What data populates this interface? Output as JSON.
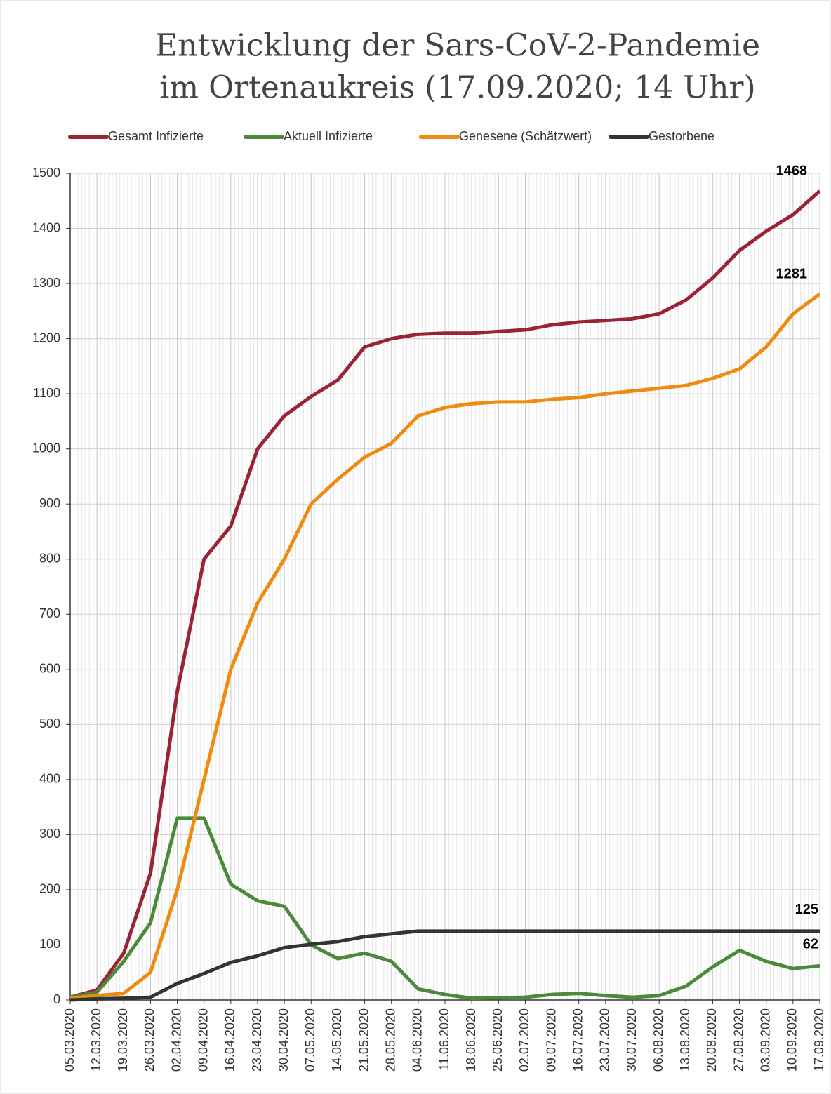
{
  "chart_data": {
    "type": "line",
    "title": [
      "Entwicklung der Sars-CoV-2-Pandemie",
      "im Ortenaukreis (17.09.2020; 14 Uhr)"
    ],
    "x": [
      "05.03.2020",
      "12.03.2020",
      "19.03.2020",
      "26.03.2020",
      "02.04.2020",
      "09.04.2020",
      "16.04.2020",
      "23.04.2020",
      "30.04.2020",
      "07.05.2020",
      "14.05.2020",
      "21.05.2020",
      "28.05.2020",
      "04.06.2020",
      "11.06.2020",
      "18.06.2020",
      "25.06.2020",
      "02.07.2020",
      "09.07.2020",
      "16.07.2020",
      "23.07.2020",
      "30.07.2020",
      "06.08.2020",
      "13.08.2020",
      "20.08.2020",
      "27.08.2020",
      "03.09.2020",
      "10.09.2020",
      "17.09.2020"
    ],
    "series": [
      {
        "name": "Gesamt Infizierte",
        "color": "#9b2335",
        "values": [
          5,
          18,
          85,
          230,
          560,
          800,
          860,
          1000,
          1060,
          1095,
          1125,
          1185,
          1200,
          1208,
          1210,
          1210,
          1213,
          1216,
          1225,
          1230,
          1233,
          1236,
          1245,
          1270,
          1310,
          1360,
          1395,
          1425,
          1468
        ]
      },
      {
        "name": "Aktuell Infizierte",
        "color": "#4a8a3a",
        "values": [
          5,
          14,
          70,
          140,
          330,
          330,
          210,
          180,
          170,
          100,
          75,
          85,
          70,
          20,
          10,
          3,
          4,
          5,
          10,
          12,
          8,
          5,
          8,
          25,
          60,
          90,
          70,
          57,
          62
        ]
      },
      {
        "name": "Genesene (Schätzwert)",
        "color": "#f08a10",
        "values": [
          3,
          8,
          12,
          50,
          200,
          400,
          600,
          720,
          800,
          900,
          945,
          985,
          1010,
          1060,
          1075,
          1082,
          1085,
          1085,
          1090,
          1093,
          1100,
          1105,
          1110,
          1115,
          1128,
          1145,
          1185,
          1245,
          1281
        ]
      },
      {
        "name": "Gestorbene",
        "color": "#333333",
        "values": [
          0,
          2,
          3,
          5,
          30,
          48,
          68,
          80,
          95,
          101,
          106,
          115,
          120,
          125,
          125,
          125,
          125,
          125,
          125,
          125,
          125,
          125,
          125,
          125,
          125,
          125,
          125,
          125,
          125
        ]
      }
    ],
    "ylim": [
      0,
      1500
    ],
    "yticks": [
      0,
      100,
      200,
      300,
      400,
      500,
      600,
      700,
      800,
      900,
      1000,
      1100,
      1200,
      1300,
      1400,
      1500
    ],
    "grid": true,
    "legend": "top"
  }
}
